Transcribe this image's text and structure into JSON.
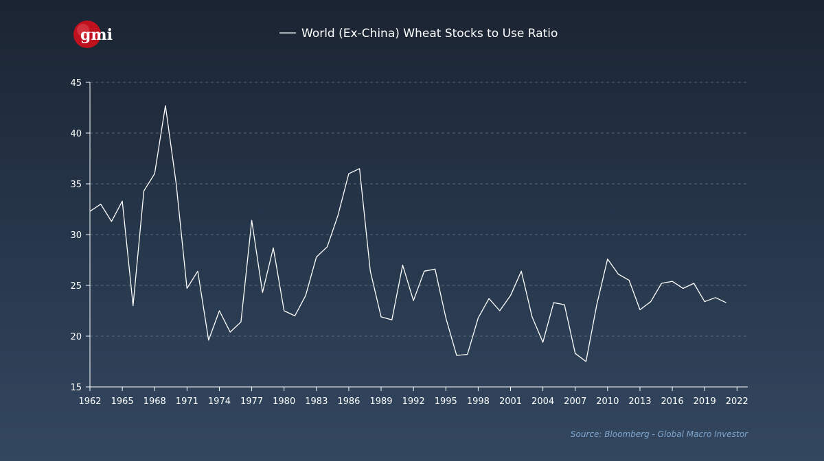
{
  "logo": {
    "text": "gmi"
  },
  "source": "Source: Bloomberg - Global Macro Investor",
  "colors": {
    "line": "#ffffff",
    "grid": "#6b7a8c",
    "source": "#7fa6cf",
    "logo_red": "#c0111f"
  },
  "chart_data": {
    "type": "line",
    "title": "",
    "xlabel": "",
    "ylabel": "",
    "xlim": [
      1962,
      2023
    ],
    "ylim": [
      15,
      45
    ],
    "yticks": [
      15,
      20,
      25,
      30,
      35,
      40,
      45
    ],
    "xticks": [
      1962,
      1965,
      1968,
      1971,
      1974,
      1977,
      1980,
      1983,
      1986,
      1989,
      1992,
      1995,
      1998,
      2001,
      2004,
      2007,
      2010,
      2013,
      2016,
      2019,
      2022
    ],
    "grid": "horizontal dashed",
    "legend": "top-center",
    "series": [
      {
        "name": "World (Ex-China) Wheat Stocks to Use Ratio",
        "x": [
          1962,
          1963,
          1964,
          1965,
          1966,
          1967,
          1968,
          1969,
          1970,
          1971,
          1972,
          1973,
          1974,
          1975,
          1976,
          1977,
          1978,
          1979,
          1980,
          1981,
          1982,
          1983,
          1984,
          1985,
          1986,
          1987,
          1988,
          1989,
          1990,
          1991,
          1992,
          1993,
          1994,
          1995,
          1996,
          1997,
          1998,
          1999,
          2000,
          2001,
          2002,
          2003,
          2004,
          2005,
          2006,
          2007,
          2008,
          2009,
          2010,
          2011,
          2012,
          2013,
          2014,
          2015,
          2016,
          2017,
          2018,
          2019,
          2020,
          2021
        ],
        "values": [
          32.3,
          33.0,
          31.3,
          33.3,
          23.0,
          34.3,
          36.0,
          42.7,
          35.0,
          24.7,
          26.4,
          19.6,
          22.5,
          20.4,
          21.4,
          31.4,
          24.3,
          28.7,
          22.5,
          22.0,
          24.0,
          27.8,
          28.8,
          31.9,
          36.0,
          36.5,
          26.4,
          21.9,
          21.6,
          27.0,
          23.5,
          26.4,
          26.6,
          21.8,
          18.1,
          18.2,
          21.8,
          23.7,
          22.5,
          24.0,
          26.4,
          21.9,
          19.4,
          23.3,
          23.1,
          18.3,
          17.5,
          23.1,
          27.6,
          26.1,
          25.5,
          22.6,
          23.4,
          25.2,
          25.4,
          24.7,
          25.2,
          23.4,
          23.8,
          23.3
        ]
      }
    ]
  }
}
